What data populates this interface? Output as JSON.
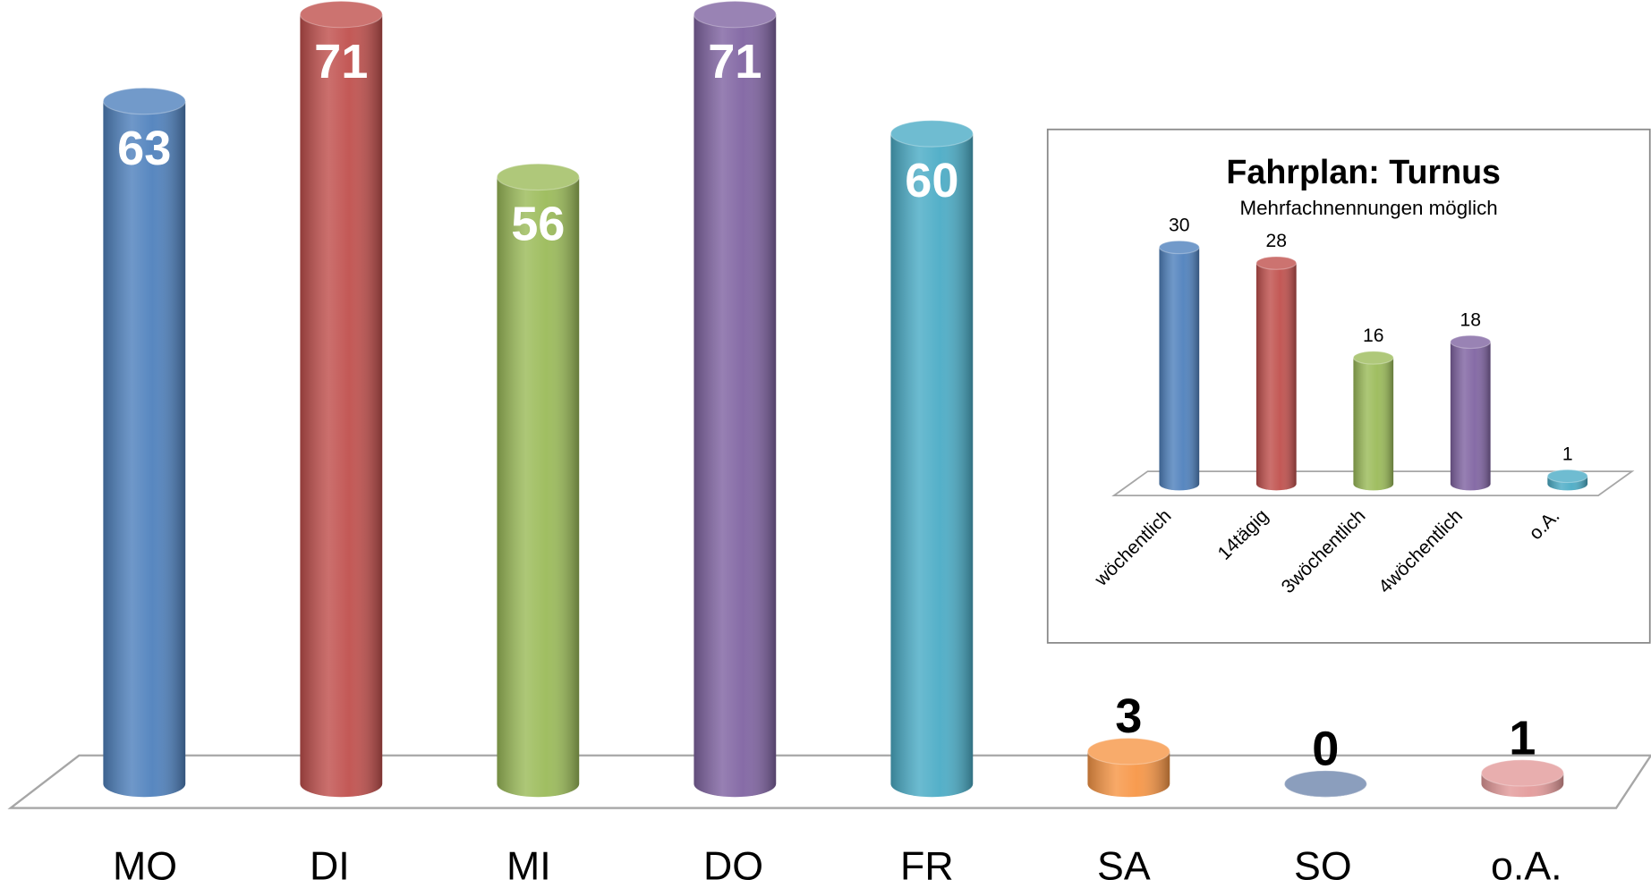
{
  "chart_data": [
    {
      "type": "bar",
      "categories": [
        "MO",
        "DI",
        "MI",
        "DO",
        "FR",
        "SA",
        "SO",
        "o.A."
      ],
      "values": [
        63,
        71,
        56,
        71,
        60,
        3,
        0,
        1
      ],
      "colors": [
        "#4f81bd",
        "#c0504d",
        "#9bbb59",
        "#8064a2",
        "#4bacc6",
        "#f79646",
        "#6f86ad",
        "#e39a9a"
      ]
    },
    {
      "type": "bar",
      "title": "Fahrplan: Turnus",
      "subtitle": "Mehrfachnennungen möglich",
      "categories": [
        "wöchentlich",
        "14tägig",
        "3wöchentlich",
        "4wöchentlich",
        "o.A."
      ],
      "values": [
        30,
        28,
        16,
        18,
        1
      ],
      "colors": [
        "#4f81bd",
        "#c0504d",
        "#9bbb59",
        "#8064a2",
        "#4bacc6"
      ]
    }
  ]
}
